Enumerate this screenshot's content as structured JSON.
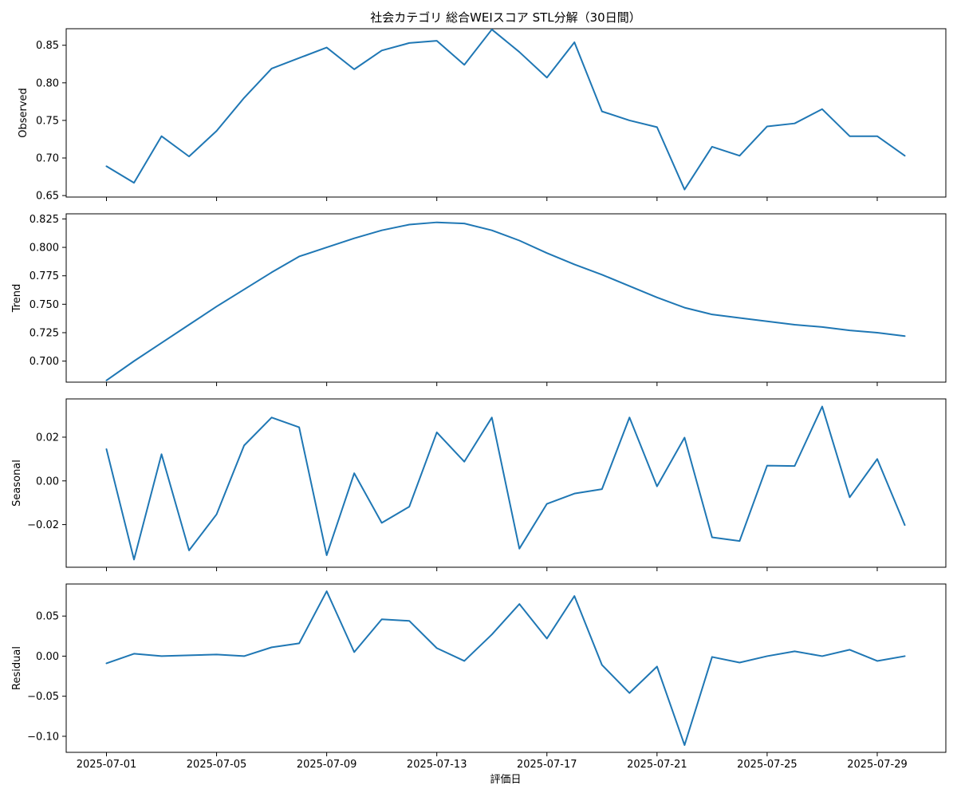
{
  "title": "社会カテゴリ 総合WEIスコア STL分解（30日間）",
  "xlabel": "評価日",
  "colors": {
    "line": "#1f77b4",
    "axis": "#000000",
    "background": "#ffffff"
  },
  "chart_data": {
    "type": "line",
    "title": "社会カテゴリ 総合WEIスコア STL分解（30日間）",
    "xlabel": "評価日",
    "x": [
      "2025-07-01",
      "2025-07-02",
      "2025-07-03",
      "2025-07-04",
      "2025-07-05",
      "2025-07-06",
      "2025-07-07",
      "2025-07-08",
      "2025-07-09",
      "2025-07-10",
      "2025-07-11",
      "2025-07-12",
      "2025-07-13",
      "2025-07-14",
      "2025-07-15",
      "2025-07-16",
      "2025-07-17",
      "2025-07-18",
      "2025-07-19",
      "2025-07-20",
      "2025-07-21",
      "2025-07-22",
      "2025-07-23",
      "2025-07-24",
      "2025-07-25",
      "2025-07-26",
      "2025-07-27",
      "2025-07-28",
      "2025-07-29",
      "2025-07-30"
    ],
    "x_ticks": [
      "2025-07-01",
      "2025-07-05",
      "2025-07-09",
      "2025-07-13",
      "2025-07-17",
      "2025-07-21",
      "2025-07-25",
      "2025-07-29"
    ],
    "shared_x": true,
    "grid": false,
    "panels": [
      {
        "ylabel": "Observed",
        "ylim": [
          0.648,
          0.872
        ],
        "yticks": [
          0.65,
          0.7,
          0.75,
          0.8,
          0.85
        ],
        "ytick_labels": [
          "0.65",
          "0.70",
          "0.75",
          "0.80",
          "0.85"
        ],
        "values": [
          0.689,
          0.667,
          0.729,
          0.702,
          0.736,
          0.78,
          0.819,
          0.833,
          0.847,
          0.818,
          0.843,
          0.853,
          0.856,
          0.824,
          0.871,
          0.841,
          0.807,
          0.854,
          0.762,
          0.75,
          0.741,
          0.658,
          0.715,
          0.703,
          0.742,
          0.746,
          0.765,
          0.729,
          0.729,
          0.703
        ]
      },
      {
        "ylabel": "Trend",
        "ylim": [
          0.6815,
          0.8295
        ],
        "yticks": [
          0.7,
          0.725,
          0.75,
          0.775,
          0.8,
          0.825
        ],
        "ytick_labels": [
          "0.700",
          "0.725",
          "0.750",
          "0.775",
          "0.800",
          "0.825"
        ],
        "values": [
          0.683,
          0.7,
          0.716,
          0.732,
          0.748,
          0.763,
          0.778,
          0.792,
          0.8,
          0.808,
          0.815,
          0.82,
          0.822,
          0.821,
          0.815,
          0.806,
          0.795,
          0.785,
          0.776,
          0.766,
          0.756,
          0.747,
          0.741,
          0.738,
          0.735,
          0.732,
          0.73,
          0.727,
          0.725,
          0.722
        ]
      },
      {
        "ylabel": "Seasonal",
        "ylim": [
          -0.0395,
          0.0375
        ],
        "yticks": [
          -0.02,
          0.0,
          0.02
        ],
        "ytick_labels": [
          "−0.02",
          "0.00",
          "0.02"
        ],
        "values": [
          0.0145,
          -0.036,
          0.0122,
          -0.0318,
          -0.0153,
          0.0162,
          0.029,
          0.0245,
          -0.034,
          0.0035,
          -0.0192,
          -0.0118,
          0.0222,
          0.0088,
          0.029,
          -0.031,
          -0.0105,
          -0.0058,
          -0.0038,
          0.029,
          -0.0025,
          0.0198,
          -0.0258,
          -0.0275,
          0.007,
          0.0068,
          0.034,
          -0.0075,
          0.01,
          -0.0202
        ]
      },
      {
        "ylabel": "Residual",
        "ylim": [
          -0.12,
          0.09
        ],
        "yticks": [
          -0.1,
          -0.05,
          0.0,
          0.05
        ],
        "ytick_labels": [
          "−0.10",
          "−0.05",
          "0.00",
          "0.05"
        ],
        "values": [
          -0.009,
          0.003,
          0.0,
          0.001,
          0.002,
          0.0,
          0.011,
          0.016,
          0.081,
          0.005,
          0.046,
          0.044,
          0.01,
          -0.006,
          0.027,
          0.065,
          0.022,
          0.075,
          -0.011,
          -0.046,
          -0.013,
          -0.111,
          -0.001,
          -0.008,
          0.0,
          0.006,
          0.0,
          0.008,
          -0.006,
          0.0
        ]
      }
    ]
  }
}
